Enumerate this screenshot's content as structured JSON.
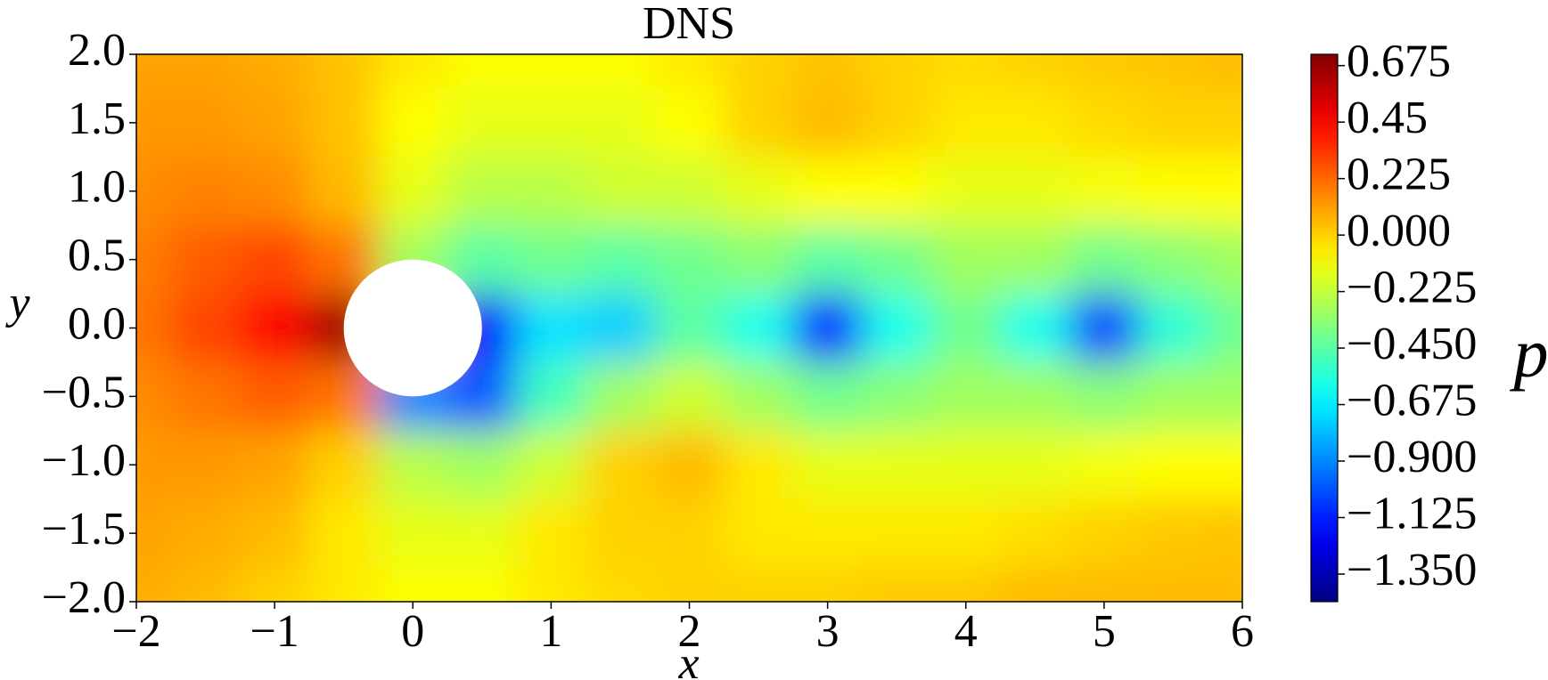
{
  "chart_data": {
    "type": "heatmap",
    "title": "DNS",
    "x_label": "x",
    "y_label": "y",
    "colorbar_label": "p",
    "colormap": "jet",
    "xlim": [
      -2,
      6
    ],
    "ylim": [
      -2,
      2
    ],
    "zlim": [
      -1.46,
      0.72
    ],
    "xticks": [
      {
        "value": -2,
        "label": "−2"
      },
      {
        "value": -1,
        "label": "−1"
      },
      0,
      1,
      2,
      3,
      4,
      5,
      6
    ],
    "yticks": [
      {
        "value": 2,
        "label": "2.0"
      },
      {
        "value": 1.5,
        "label": "1.5"
      },
      {
        "value": 1,
        "label": "1.0"
      },
      {
        "value": 0.5,
        "label": "0.5"
      },
      {
        "value": 0,
        "label": "0.0"
      },
      {
        "value": -0.5,
        "label": "−0.5"
      },
      {
        "value": -1,
        "label": "−1.0"
      },
      {
        "value": -1.5,
        "label": "−1.5"
      },
      {
        "value": -2,
        "label": "−2.0"
      }
    ],
    "zticks": [
      0.675,
      0.45,
      0.225,
      {
        "value": 0,
        "label": "0.000"
      },
      {
        "value": -0.225,
        "label": "−0.225"
      },
      {
        "value": -0.45,
        "label": "−0.450"
      },
      {
        "value": -0.675,
        "label": "−0.675"
      },
      {
        "value": -0.9,
        "label": "−0.900"
      },
      {
        "value": -1.125,
        "label": "−1.125"
      },
      {
        "value": -1.35,
        "label": "−1.350"
      }
    ],
    "cylinder": {
      "center": [
        0,
        0
      ],
      "radius": 0.5
    },
    "x": [
      -2,
      -1.5,
      -1,
      -0.5,
      0,
      0.5,
      1,
      1.5,
      2,
      2.5,
      3,
      3.5,
      4,
      4.5,
      5,
      5.5,
      6
    ],
    "y": [
      2,
      1.5,
      1,
      0.5,
      0,
      -0.5,
      -1,
      -1.5,
      -2
    ],
    "z": [
      [
        0.1,
        0.1,
        0.08,
        0.03,
        -0.05,
        -0.1,
        -0.1,
        -0.1,
        -0.05,
        0.0,
        0.03,
        0.0,
        -0.02,
        0.0,
        0.02,
        0.03,
        0.05
      ],
      [
        0.12,
        0.12,
        0.1,
        0.03,
        -0.1,
        -0.15,
        -0.15,
        -0.15,
        -0.1,
        0.0,
        0.05,
        0.0,
        -0.05,
        -0.05,
        -0.02,
        0.0,
        0.0
      ],
      [
        0.15,
        0.17,
        0.15,
        0.05,
        -0.15,
        -0.25,
        -0.25,
        -0.2,
        -0.2,
        -0.15,
        -0.1,
        -0.1,
        -0.15,
        -0.15,
        -0.12,
        -0.1,
        -0.1
      ],
      [
        0.18,
        0.25,
        0.3,
        0.2,
        -0.3,
        -0.45,
        -0.4,
        -0.45,
        -0.4,
        -0.35,
        -0.45,
        -0.4,
        -0.3,
        -0.3,
        -0.4,
        -0.35,
        -0.3
      ],
      [
        0.2,
        0.3,
        0.45,
        0.65,
        null,
        -1.2,
        -0.7,
        -0.75,
        -0.45,
        -0.6,
        -1.15,
        -0.6,
        -0.4,
        -0.6,
        -1.05,
        -0.55,
        -0.4
      ],
      [
        0.15,
        0.2,
        0.25,
        0.2,
        -0.9,
        -1.0,
        -0.5,
        -0.3,
        -0.2,
        -0.3,
        -0.4,
        -0.35,
        -0.3,
        -0.3,
        -0.35,
        -0.3,
        -0.3
      ],
      [
        0.12,
        0.12,
        0.1,
        0.0,
        -0.25,
        -0.3,
        -0.2,
        0.0,
        0.05,
        -0.05,
        -0.15,
        -0.15,
        -0.15,
        -0.15,
        -0.12,
        -0.1,
        -0.1
      ],
      [
        0.1,
        0.08,
        0.05,
        -0.05,
        -0.15,
        -0.15,
        -0.05,
        0.0,
        0.0,
        -0.05,
        -0.05,
        -0.05,
        -0.05,
        -0.03,
        0.0,
        0.02,
        0.03
      ],
      [
        0.08,
        0.05,
        0.0,
        -0.05,
        -0.1,
        -0.1,
        -0.05,
        -0.02,
        0.0,
        0.0,
        0.0,
        0.02,
        0.02,
        0.05,
        0.05,
        0.05,
        0.05
      ]
    ]
  }
}
